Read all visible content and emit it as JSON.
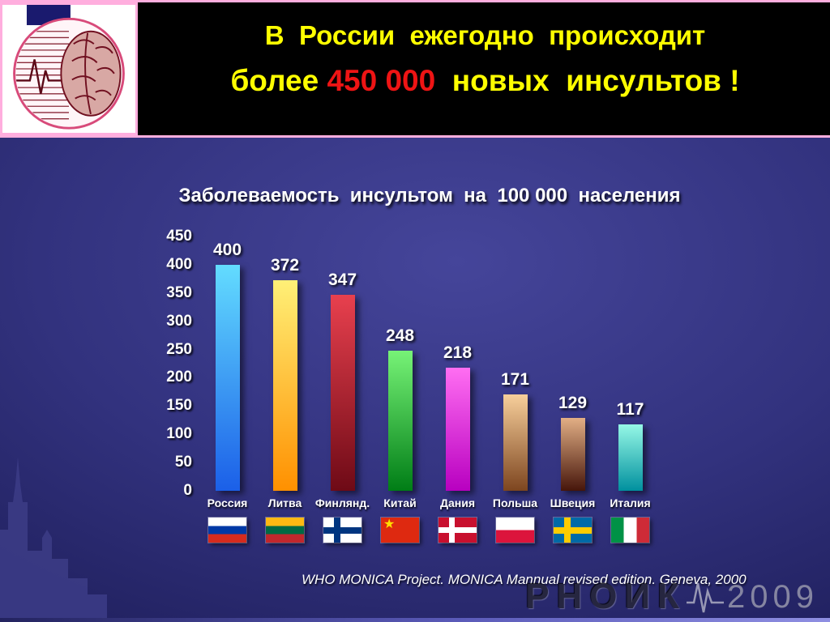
{
  "header": {
    "line1": "В  России  ежегодно  происходит",
    "line2_pre": "более ",
    "line2_highlight": "450 000",
    "line2_post": "  новых  инсультов !",
    "title_color": "#ffff00",
    "highlight_color": "#ee1414"
  },
  "chart_data": {
    "type": "bar",
    "title": "Заболеваемость  инсультом  на  100 000  населения",
    "categories": [
      "Россия",
      "Литва",
      "Финлянд.",
      "Китай",
      "Дания",
      "Польша",
      "Швеция",
      "Италия"
    ],
    "values": [
      400,
      372,
      347,
      248,
      218,
      171,
      129,
      117
    ],
    "xlabel": "",
    "ylabel": "",
    "ylim": [
      0,
      450
    ],
    "yticks": [
      450,
      400,
      350,
      300,
      250,
      200,
      150,
      100,
      50,
      0
    ],
    "grid": false,
    "legend_position": "none",
    "bar_gradients": [
      [
        "#63dcff",
        "#1b5fe8"
      ],
      [
        "#fff077",
        "#ff9000"
      ],
      [
        "#e8404e",
        "#6e0a16"
      ],
      [
        "#77f377",
        "#007d16"
      ],
      [
        "#ff6ef2",
        "#b800c0"
      ],
      [
        "#f7cf9b",
        "#7d451f"
      ],
      [
        "#e2af85",
        "#46150a"
      ],
      [
        "#96f8e6",
        "#00909e"
      ]
    ],
    "flags": [
      "russia",
      "lithuania",
      "finland",
      "china",
      "denmark",
      "poland",
      "sweden",
      "italy"
    ]
  },
  "footer": {
    "source": "WHO MONICA Project. MONICA Mannual revised edition. Geneva, 2000",
    "watermark": "РНОИК",
    "watermark_year": "2009"
  }
}
